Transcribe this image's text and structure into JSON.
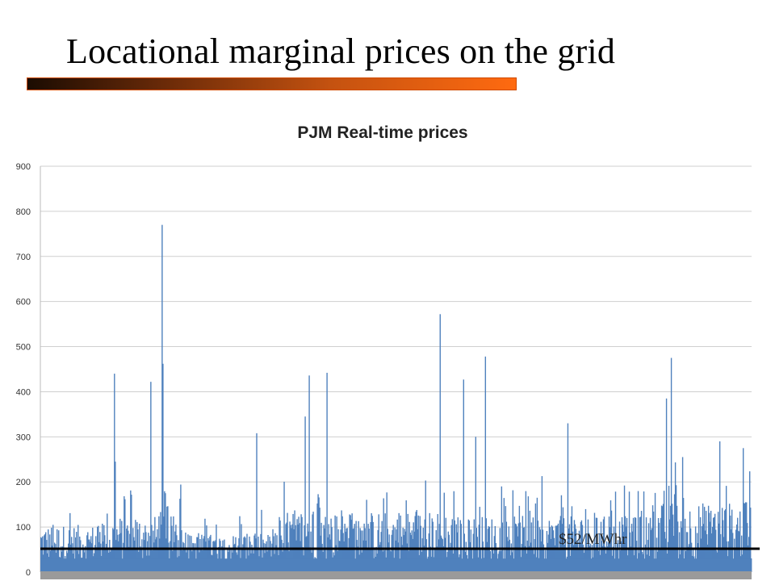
{
  "slide": {
    "title": "Locational marginal prices on the grid",
    "accent_gradient": [
      "#1b0c02",
      "#ff6a10"
    ]
  },
  "chart_data": {
    "type": "bar",
    "title": "PJM Real-time prices",
    "xlabel": "",
    "ylabel": "",
    "ylim": [
      0,
      900
    ],
    "y_ticks": [
      0,
      100,
      200,
      300,
      400,
      500,
      600,
      700,
      800,
      900
    ],
    "grid": true,
    "series_color": "#4f81bd",
    "spikes": [
      {
        "x": 0.103,
        "value": 440
      },
      {
        "x": 0.104,
        "value": 245
      },
      {
        "x": 0.155,
        "value": 422
      },
      {
        "x": 0.17,
        "value": 260
      },
      {
        "x": 0.171,
        "value": 770
      },
      {
        "x": 0.172,
        "value": 462
      },
      {
        "x": 0.175,
        "value": 175
      },
      {
        "x": 0.303,
        "value": 308
      },
      {
        "x": 0.372,
        "value": 345
      },
      {
        "x": 0.377,
        "value": 436
      },
      {
        "x": 0.402,
        "value": 442
      },
      {
        "x": 0.561,
        "value": 572
      },
      {
        "x": 0.594,
        "value": 427
      },
      {
        "x": 0.611,
        "value": 300
      },
      {
        "x": 0.625,
        "value": 478
      },
      {
        "x": 0.741,
        "value": 330
      },
      {
        "x": 0.88,
        "value": 385
      },
      {
        "x": 0.886,
        "value": 475
      },
      {
        "x": 0.955,
        "value": 290
      },
      {
        "x": 0.987,
        "value": 275
      }
    ],
    "baseline_levels": [
      {
        "from": 0.0,
        "to": 0.1,
        "base": 80,
        "amp": 90
      },
      {
        "from": 0.1,
        "to": 0.2,
        "base": 100,
        "amp": 110
      },
      {
        "from": 0.2,
        "to": 0.34,
        "base": 60,
        "amp": 60
      },
      {
        "from": 0.34,
        "to": 0.57,
        "base": 110,
        "amp": 90
      },
      {
        "from": 0.57,
        "to": 0.86,
        "base": 100,
        "amp": 110
      },
      {
        "from": 0.86,
        "to": 1.0,
        "base": 130,
        "amp": 120
      }
    ],
    "reference_line": {
      "value": 52,
      "label": "$52/MWhr"
    }
  }
}
